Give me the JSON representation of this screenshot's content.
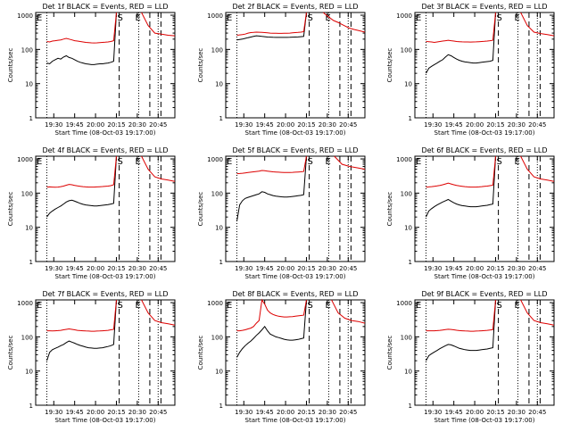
{
  "colors": {
    "events": "#000000",
    "lld": "#dd0000",
    "axes": "#000000"
  },
  "shared": {
    "ylabel": "Counts/sec",
    "xlabel": "Start Time (08-Oct-03 19:17:00)",
    "x_tick_labels": [
      "19:30",
      "19:45",
      "20:00",
      "20:15",
      "20:30",
      "20:45"
    ],
    "y_tick_labels": [
      "1",
      "10",
      "100",
      "1000"
    ],
    "x_ticks_minutes": [
      13,
      28,
      43,
      58,
      73,
      88
    ],
    "xlim_minutes": [
      0,
      100
    ],
    "ylim": [
      1,
      1200
    ],
    "scale": "log",
    "flag_labels": {
      "E": "E",
      "S": "S"
    },
    "flag_minutes": {
      "E1": 0,
      "S": 58,
      "E2": 76
    },
    "dotted_minutes": [
      8,
      74,
      88
    ],
    "dashed_minutes": [
      60,
      82,
      90
    ]
  },
  "chart_data": [
    {
      "type": "line",
      "title": "Det 1f BLACK = Events, RED = LLD",
      "data_start_minute": 8,
      "series": [
        {
          "name": "Events",
          "values": [
            40,
            38,
            45,
            50,
            55,
            52,
            60,
            65,
            58,
            55,
            50,
            45,
            42,
            40,
            38,
            37,
            36,
            36,
            37,
            38,
            38,
            39,
            40,
            42,
            45,
            1200
          ]
        },
        {
          "name": "LLD",
          "values": [
            170,
            165,
            175,
            180,
            185,
            190,
            200,
            210,
            200,
            190,
            180,
            175,
            170,
            165,
            160,
            158,
            156,
            155,
            156,
            158,
            160,
            162,
            165,
            170,
            180,
            1200
          ]
        }
      ],
      "after_flag": {
        "start_minute": 76,
        "values": [
          1200,
          500,
          300,
          280,
          260,
          250
        ]
      }
    },
    {
      "type": "line",
      "title": "Det 2f BLACK = Events, RED = LLD",
      "data_start_minute": 8,
      "series": [
        {
          "name": "Events",
          "values": [
            190,
            195,
            200,
            210,
            220,
            230,
            240,
            250,
            245,
            240,
            235,
            230,
            228,
            226,
            225,
            225,
            224,
            224,
            225,
            226,
            228,
            230,
            232,
            235,
            240,
            1200
          ]
        },
        {
          "name": "LLD",
          "values": [
            260,
            265,
            270,
            280,
            300,
            310,
            315,
            320,
            318,
            315,
            310,
            305,
            300,
            298,
            296,
            295,
            295,
            296,
            298,
            300,
            305,
            310,
            315,
            320,
            330,
            1200
          ]
        }
      ],
      "after_flag": {
        "start_minute": 70,
        "values": [
          1200,
          900,
          700,
          600,
          500,
          420,
          380,
          350,
          320
        ]
      }
    },
    {
      "type": "line",
      "title": "Det 3f BLACK = Events, RED = LLD",
      "data_start_minute": 8,
      "series": [
        {
          "name": "Events",
          "values": [
            20,
            28,
            32,
            36,
            40,
            45,
            50,
            60,
            70,
            65,
            58,
            52,
            48,
            45,
            43,
            42,
            41,
            40,
            40,
            41,
            42,
            43,
            44,
            45,
            48,
            1200
          ]
        },
        {
          "name": "LLD",
          "values": [
            170,
            168,
            165,
            160,
            165,
            170,
            175,
            180,
            185,
            180,
            175,
            170,
            168,
            166,
            165,
            165,
            164,
            165,
            166,
            168,
            170,
            172,
            175,
            180,
            185,
            1200
          ]
        }
      ],
      "after_flag": {
        "start_minute": 76,
        "values": [
          1200,
          500,
          320,
          290,
          270,
          250
        ]
      }
    },
    {
      "type": "line",
      "title": "Det 4f BLACK = Events, RED = LLD",
      "data_start_minute": 8,
      "series": [
        {
          "name": "Events",
          "values": [
            20,
            26,
            30,
            34,
            38,
            42,
            48,
            55,
            60,
            62,
            58,
            54,
            50,
            47,
            45,
            44,
            43,
            42,
            42,
            43,
            44,
            45,
            46,
            48,
            50,
            1200
          ]
        },
        {
          "name": "LLD",
          "values": [
            150,
            152,
            150,
            148,
            150,
            155,
            160,
            170,
            180,
            175,
            168,
            162,
            158,
            155,
            152,
            150,
            150,
            150,
            152,
            154,
            156,
            158,
            160,
            165,
            175,
            1200
          ]
        }
      ],
      "after_flag": {
        "start_minute": 76,
        "values": [
          1200,
          500,
          300,
          260,
          240,
          220
        ]
      }
    },
    {
      "type": "line",
      "title": "Det 5f BLACK = Events, RED = LLD",
      "data_start_minute": 8,
      "series": [
        {
          "name": "Events",
          "values": [
            15,
            45,
            60,
            70,
            75,
            80,
            85,
            90,
            95,
            110,
            105,
            95,
            90,
            85,
            82,
            80,
            78,
            77,
            77,
            78,
            80,
            82,
            84,
            86,
            90,
            1200
          ]
        },
        {
          "name": "LLD",
          "values": [
            370,
            375,
            380,
            390,
            400,
            410,
            420,
            430,
            440,
            460,
            450,
            440,
            430,
            420,
            415,
            410,
            405,
            400,
            400,
            402,
            405,
            410,
            415,
            420,
            430,
            1200
          ]
        }
      ],
      "after_flag": {
        "start_minute": 78,
        "values": [
          1200,
          700,
          600,
          550,
          500
        ]
      }
    },
    {
      "type": "line",
      "title": "Det 6f BLACK = Events, RED = LLD",
      "data_start_minute": 8,
      "series": [
        {
          "name": "Events",
          "values": [
            20,
            30,
            35,
            40,
            45,
            50,
            55,
            60,
            65,
            58,
            52,
            48,
            45,
            43,
            42,
            41,
            40,
            40,
            40,
            41,
            42,
            43,
            44,
            46,
            48,
            1200
          ]
        },
        {
          "name": "LLD",
          "values": [
            150,
            152,
            155,
            158,
            162,
            168,
            175,
            185,
            195,
            185,
            175,
            168,
            162,
            158,
            155,
            152,
            150,
            150,
            150,
            152,
            155,
            158,
            160,
            165,
            170,
            1200
          ]
        }
      ],
      "after_flag": {
        "start_minute": 76,
        "values": [
          1200,
          500,
          300,
          260,
          240,
          220
        ]
      }
    },
    {
      "type": "line",
      "title": "Det 7f BLACK = Events, RED = LLD",
      "data_start_minute": 8,
      "series": [
        {
          "name": "Events",
          "values": [
            20,
            35,
            42,
            46,
            50,
            55,
            60,
            68,
            75,
            70,
            65,
            60,
            56,
            53,
            50,
            48,
            47,
            46,
            46,
            47,
            48,
            50,
            52,
            55,
            60,
            1200
          ]
        },
        {
          "name": "LLD",
          "values": [
            150,
            150,
            148,
            150,
            152,
            155,
            160,
            165,
            170,
            165,
            160,
            155,
            152,
            150,
            148,
            147,
            146,
            146,
            147,
            148,
            150,
            152,
            155,
            160,
            165,
            1200
          ]
        }
      ],
      "after_flag": {
        "start_minute": 76,
        "values": [
          1200,
          500,
          300,
          260,
          240,
          220
        ]
      }
    },
    {
      "type": "line",
      "title": "Det 8f BLACK = Events, RED = LLD",
      "data_start_minute": 8,
      "series": [
        {
          "name": "Events",
          "values": [
            25,
            35,
            45,
            55,
            65,
            75,
            90,
            110,
            130,
            160,
            200,
            150,
            120,
            110,
            100,
            95,
            90,
            85,
            82,
            80,
            80,
            82,
            84,
            88,
            92,
            1200
          ]
        },
        {
          "name": "LLD",
          "values": [
            150,
            150,
            155,
            160,
            170,
            180,
            200,
            250,
            300,
            1200,
            900,
            600,
            500,
            450,
            420,
            400,
            390,
            380,
            380,
            385,
            390,
            400,
            410,
            420,
            430,
            1200
          ]
        }
      ],
      "after_flag": {
        "start_minute": 76,
        "values": [
          1200,
          500,
          350,
          300,
          280,
          250
        ]
      }
    },
    {
      "type": "line",
      "title": "Det 9f BLACK = Events, RED = LLD",
      "data_start_minute": 8,
      "series": [
        {
          "name": "Events",
          "values": [
            20,
            28,
            32,
            36,
            40,
            45,
            50,
            55,
            60,
            58,
            54,
            50,
            46,
            44,
            42,
            41,
            40,
            40,
            40,
            41,
            42,
            43,
            44,
            46,
            48,
            1200
          ]
        },
        {
          "name": "LLD",
          "values": [
            150,
            150,
            150,
            150,
            152,
            155,
            158,
            162,
            166,
            164,
            160,
            156,
            152,
            150,
            148,
            147,
            146,
            146,
            147,
            148,
            150,
            152,
            155,
            158,
            162,
            1200
          ]
        }
      ],
      "after_flag": {
        "start_minute": 76,
        "values": [
          1200,
          500,
          300,
          260,
          240,
          220
        ]
      }
    }
  ]
}
